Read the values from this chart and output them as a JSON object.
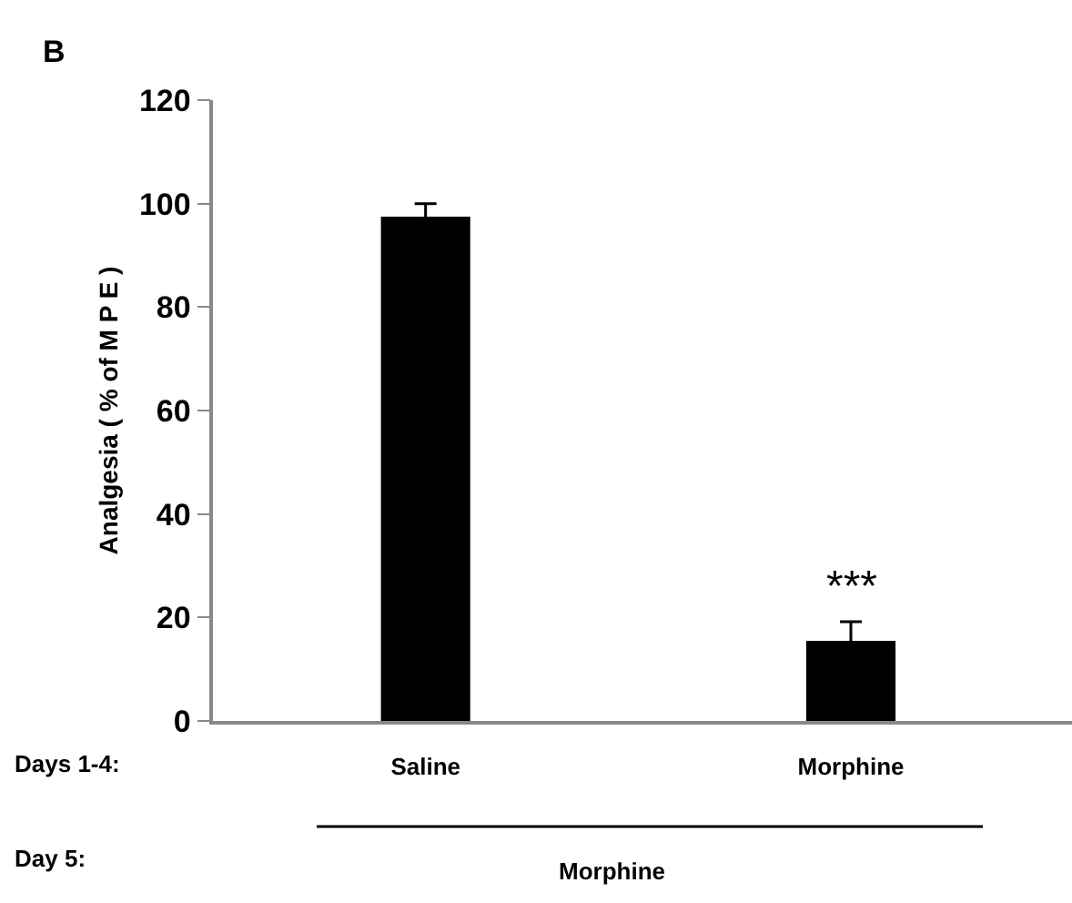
{
  "chart_data": {
    "type": "bar",
    "title": "B",
    "ylabel": "Analgesia ( % of M P E )",
    "categories": [
      "Saline",
      "Morphine"
    ],
    "values": [
      97.5,
      15.5
    ],
    "color": "#000000",
    "errors": [
      2.5,
      3.7
    ],
    "ylim": [
      0,
      120
    ],
    "yticks": [
      0,
      20,
      40,
      60,
      80,
      100,
      120
    ],
    "grid": false,
    "annotations": [
      "***",
      "Days 1-4:",
      "Day 5:",
      "Morphine"
    ]
  }
}
